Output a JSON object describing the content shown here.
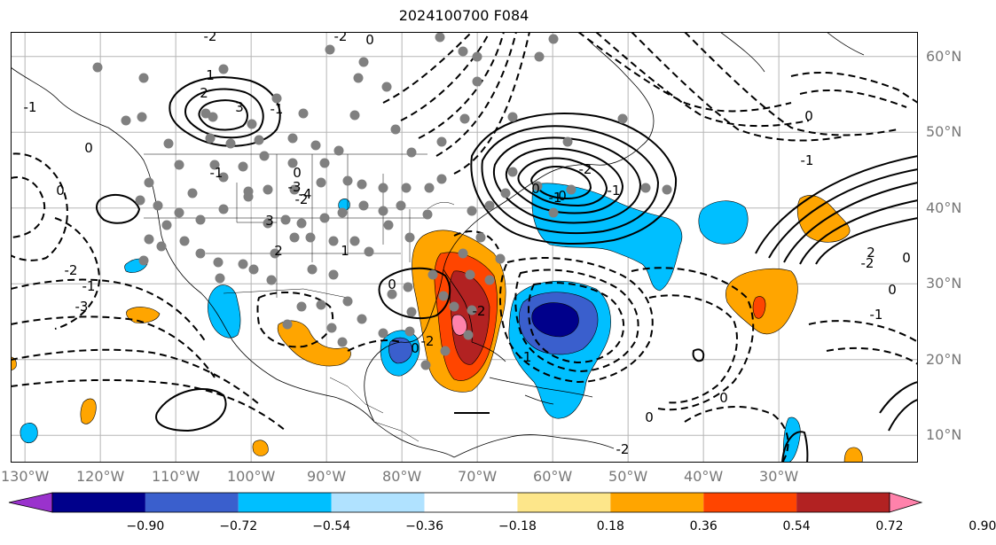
{
  "title": "2024100700 F084",
  "lat_labels": [
    {
      "value": 60,
      "text": "60°N"
    },
    {
      "value": 50,
      "text": "50°N"
    },
    {
      "value": 40,
      "text": "40°N"
    },
    {
      "value": 30,
      "text": "30°N"
    },
    {
      "value": 20,
      "text": "20°N"
    },
    {
      "value": 10,
      "text": "10°N"
    }
  ],
  "lon_labels": [
    {
      "value": -130,
      "text": "130°W"
    },
    {
      "value": -120,
      "text": "120°W"
    },
    {
      "value": -110,
      "text": "110°W"
    },
    {
      "value": -100,
      "text": "100°W"
    },
    {
      "value": -90,
      "text": "90°W"
    },
    {
      "value": -80,
      "text": "80°W"
    },
    {
      "value": -70,
      "text": "70°W"
    },
    {
      "value": -60,
      "text": "60°W"
    },
    {
      "value": -50,
      "text": "50°W"
    },
    {
      "value": -40,
      "text": "40°W"
    },
    {
      "value": -30,
      "text": "30°W"
    }
  ],
  "colorbar": {
    "colors": [
      "#9a32cd",
      "#00008b",
      "#3a5fcd",
      "#00bfff",
      "#b0e2ff",
      "#ffffff",
      "#fde68a",
      "#ffa500",
      "#ff4500",
      "#b22222",
      "#ff82ab"
    ],
    "ticks": [
      "−0.90",
      "−0.72",
      "−0.54",
      "−0.36",
      "−0.18",
      "0.18",
      "0.36",
      "0.54",
      "0.72",
      "0.90"
    ]
  },
  "contour_labels": [
    "-2",
    "0",
    "3",
    "2",
    "1",
    "-1",
    "0",
    "-2",
    "-1",
    "-3",
    "-2",
    "-1",
    "0",
    "-3",
    "-4",
    "-2",
    "0",
    "-1",
    "3",
    "2",
    "1",
    "0",
    "-1",
    "-2",
    "0",
    "-2",
    "0",
    "-1",
    "0",
    "-2",
    "-1",
    "0",
    "-1",
    "0",
    "2",
    "-2",
    "0",
    "-1",
    "0",
    "0",
    "-2"
  ]
}
